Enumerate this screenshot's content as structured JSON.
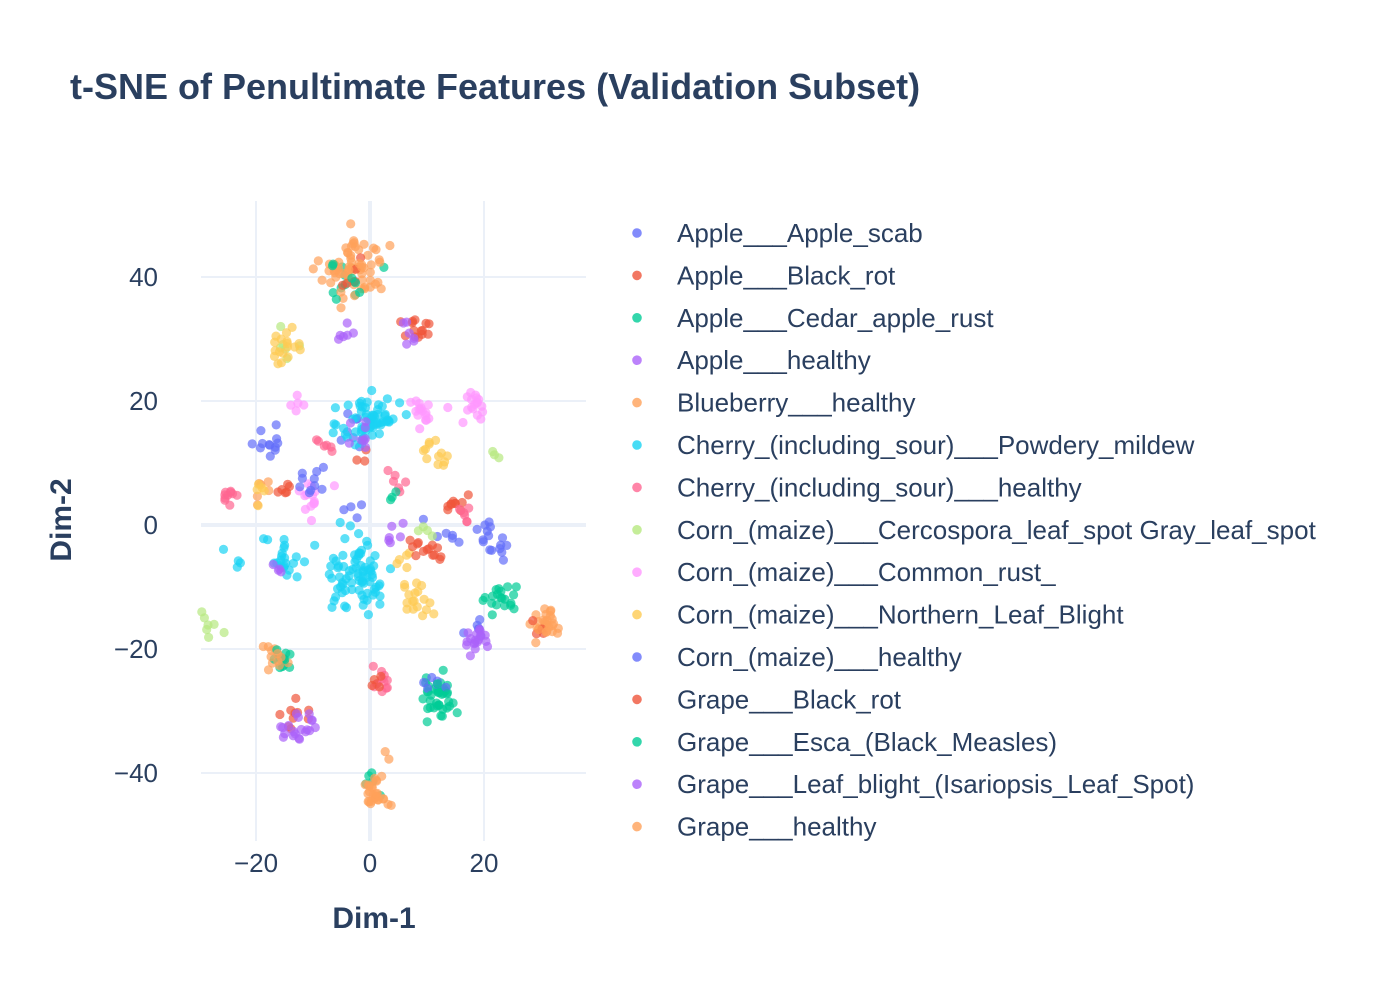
{
  "chart_data": {
    "type": "scatter",
    "title": "t-SNE of Penultimate Features (Validation Subset)",
    "xlabel": "Dim-1",
    "ylabel": "Dim-2",
    "xlim": [
      -38,
      38
    ],
    "ylim": [
      -51,
      52
    ],
    "xticks": [
      -20,
      0,
      20
    ],
    "yticks": [
      -40,
      -20,
      0,
      20,
      40
    ],
    "xtick_labels": [
      "−20",
      "0",
      "20"
    ],
    "ytick_labels": [
      "−40",
      "−20",
      "0",
      "20",
      "40"
    ],
    "grid": true,
    "legend_position": "right",
    "series": [
      {
        "name": "Apple___Apple_scab",
        "color": "#636efa",
        "clusters": [
          [
            -18,
            14,
            1.5,
            12
          ],
          [
            -3,
            15,
            2,
            8
          ],
          [
            19,
            -17,
            1.2,
            6
          ],
          [
            22,
            -3,
            1.5,
            8
          ],
          [
            13,
            -2,
            1.5,
            6
          ]
        ]
      },
      {
        "name": "Apple___Black_rot",
        "color": "#EF553B",
        "clusters": [
          [
            8,
            32,
            1.2,
            14
          ],
          [
            -13,
            -31,
            1.2,
            10
          ],
          [
            15,
            3,
            1.1,
            10
          ],
          [
            11,
            -4,
            1.1,
            8
          ],
          [
            -2,
            11,
            1,
            3
          ]
        ]
      },
      {
        "name": "Apple___Cedar_apple_rust",
        "color": "#00cc96",
        "clusters": [
          [
            12,
            -27,
            1.8,
            28
          ],
          [
            23,
            -12,
            1.3,
            14
          ],
          [
            -15,
            -22,
            1,
            6
          ],
          [
            -4,
            40,
            2,
            8
          ],
          [
            1,
            -41,
            1,
            5
          ]
        ]
      },
      {
        "name": "Apple___healthy",
        "color": "#ab63fa",
        "clusters": [
          [
            -4,
            30,
            1,
            6
          ],
          [
            19,
            -18,
            1.2,
            12
          ],
          [
            -12,
            -32,
            1.3,
            10
          ],
          [
            4,
            -1,
            1.2,
            6
          ]
        ]
      },
      {
        "name": "Blueberry___healthy",
        "color": "#FFA15A",
        "clusters": [
          [
            -3,
            41,
            2.8,
            55
          ],
          [
            31,
            -16,
            1.3,
            22
          ],
          [
            1,
            -43,
            1.3,
            14
          ],
          [
            -17,
            -21,
            1.2,
            8
          ],
          [
            -19,
            5,
            1,
            6
          ]
        ]
      },
      {
        "name": "Cherry_(including_sour)___Powdery_mildew",
        "color": "#19d3f3",
        "clusters": [
          [
            0,
            17,
            2.5,
            65
          ],
          [
            -2,
            -8,
            3,
            80
          ],
          [
            -15,
            -6,
            2,
            22
          ],
          [
            -23,
            -5,
            1,
            4
          ]
        ]
      },
      {
        "name": "Cherry_(including_sour)___healthy",
        "color": "#FF6692",
        "clusters": [
          [
            -25,
            5,
            1,
            10
          ],
          [
            2,
            -25,
            1,
            12
          ],
          [
            -7,
            13,
            1,
            6
          ],
          [
            5,
            7,
            1,
            6
          ],
          [
            16,
            1,
            1,
            6
          ]
        ]
      },
      {
        "name": "Corn_(maize)___Cercospora_leaf_spot Gray_leaf_spot",
        "color": "#B6E880",
        "clusters": [
          [
            -30,
            -16,
            1.5,
            20
          ],
          [
            -15,
            29,
            1,
            6
          ],
          [
            22,
            11,
            0.5,
            3
          ],
          [
            10,
            -1,
            1,
            4
          ]
        ]
      },
      {
        "name": "Corn_(maize)___Common_rust_",
        "color": "#FF97FF",
        "clusters": [
          [
            18,
            19,
            1.5,
            18
          ],
          [
            9,
            18,
            1.2,
            16
          ],
          [
            -10,
            5,
            1.3,
            14
          ],
          [
            -13,
            20,
            1,
            5
          ]
        ]
      },
      {
        "name": "Corn_(maize)___Northern_Leaf_Blight",
        "color": "#FECB52",
        "clusters": [
          [
            -15,
            29,
            1.5,
            18
          ],
          [
            8,
            -12,
            1.5,
            18
          ],
          [
            11,
            12,
            1.2,
            12
          ],
          [
            -19,
            5,
            1,
            5
          ],
          [
            6,
            -5,
            1,
            5
          ]
        ]
      },
      {
        "name": "Corn_(maize)___healthy",
        "color": "#636efa",
        "clusters": [
          [
            -10,
            6,
            1.3,
            10
          ],
          [
            20,
            -2,
            1.5,
            8
          ],
          [
            -3,
            2,
            1,
            4
          ],
          [
            11,
            -25,
            1,
            6
          ]
        ]
      },
      {
        "name": "Grape___Black_rot",
        "color": "#EF553B",
        "clusters": [
          [
            -15,
            6,
            0.8,
            6
          ],
          [
            -4,
            40,
            2,
            6
          ],
          [
            2,
            -25,
            1,
            4
          ],
          [
            9,
            -3,
            1.2,
            6
          ],
          [
            29,
            -17,
            1,
            4
          ]
        ]
      },
      {
        "name": "Grape___Esca_(Black_Measles)",
        "color": "#00cc96",
        "clusters": [
          [
            12,
            -29,
            1.5,
            12
          ],
          [
            23,
            -12,
            1,
            6
          ],
          [
            -4,
            40,
            2,
            6
          ],
          [
            -15,
            -21,
            1,
            6
          ],
          [
            3,
            5,
            1,
            3
          ]
        ]
      },
      {
        "name": "Grape___Leaf_blight_(Isariopsis_Leaf_Spot)",
        "color": "#ab63fa",
        "clusters": [
          [
            -13,
            -33,
            1.2,
            10
          ],
          [
            19,
            -19,
            1,
            6
          ],
          [
            7,
            31,
            1,
            6
          ],
          [
            -2,
            14,
            1.5,
            8
          ],
          [
            -16,
            -7,
            0.8,
            4
          ]
        ]
      },
      {
        "name": "Grape___healthy",
        "color": "#FFA15A",
        "clusters": [
          [
            1,
            -43,
            1.2,
            14
          ],
          [
            -1,
            43,
            2,
            12
          ],
          [
            3,
            -37,
            0.6,
            2
          ],
          [
            -16,
            -21,
            1,
            5
          ],
          [
            31,
            -16,
            1,
            6
          ]
        ]
      }
    ]
  }
}
